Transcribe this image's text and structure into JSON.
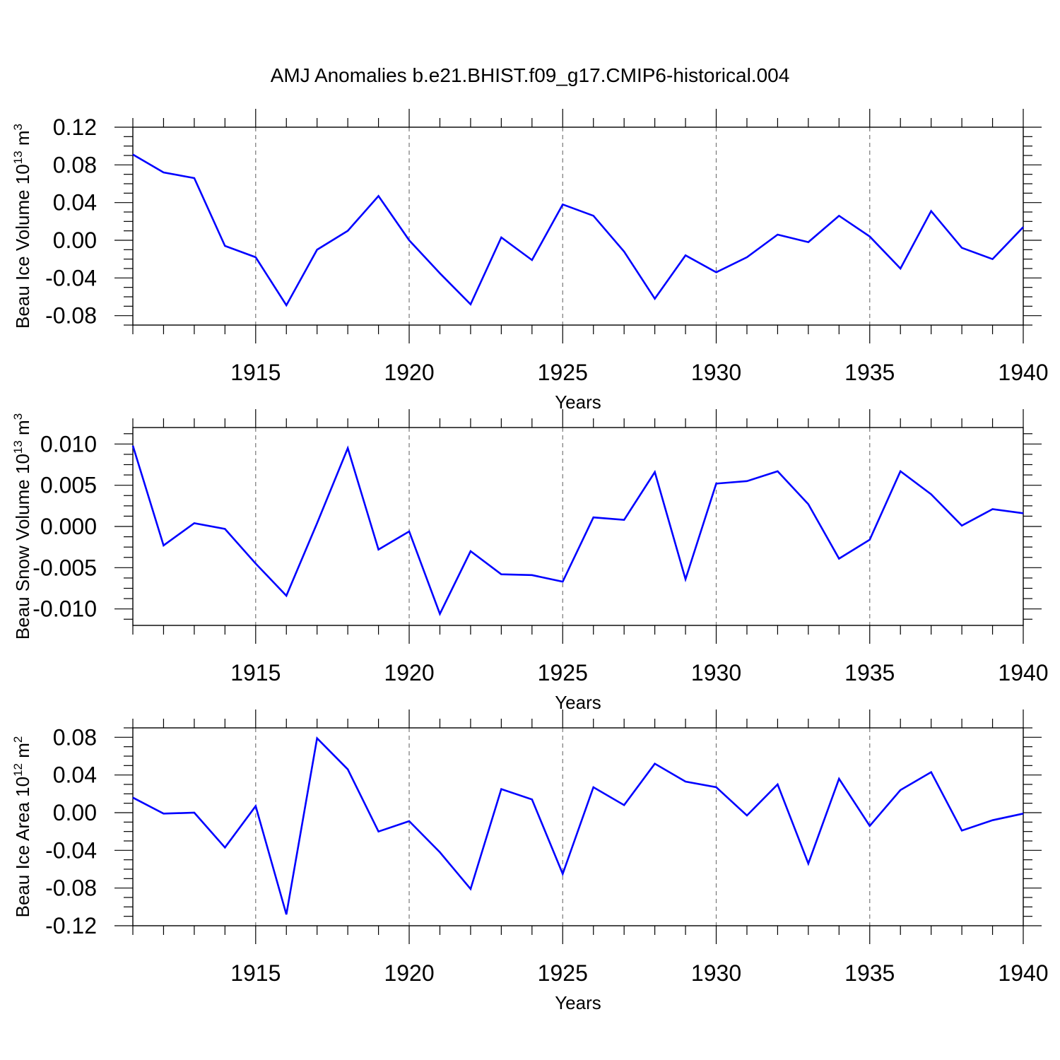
{
  "title": "AMJ Anomalies b.e21.BHIST.f09_g17.CMIP6-historical.004",
  "colors": {
    "line": "#0000ff",
    "frame": "#000000",
    "grid": "#777777"
  },
  "chart_data": [
    {
      "type": "line",
      "title": "",
      "xlabel": "Years",
      "ylabel_main": "Beau Ice Volume 10",
      "ylabel_exp": "13",
      "ylabel_unit": " m",
      "ylabel_unit_exp": "3",
      "xlim": [
        1911,
        1940
      ],
      "ylim": [
        -0.09,
        0.12
      ],
      "xticks": [
        "1915",
        "1920",
        "1925",
        "1930",
        "1935",
        "1940"
      ],
      "yticks": [
        "0.12",
        "0.08",
        "0.04",
        "0.00",
        "-0.04",
        "-0.08"
      ],
      "grid": "dashed vertical at major x ticks",
      "series": [
        {
          "x": [
            1911,
            1912,
            1913,
            1914,
            1915,
            1916,
            1917,
            1918,
            1919,
            1920,
            1921,
            1922,
            1923,
            1924,
            1925,
            1926,
            1927,
            1928,
            1929,
            1930,
            1931,
            1932,
            1933,
            1934,
            1935,
            1936,
            1937,
            1938,
            1939,
            1940
          ],
          "values": [
            0.091,
            0.072,
            0.066,
            -0.006,
            -0.018,
            -0.069,
            -0.01,
            0.01,
            0.047,
            0.0,
            -0.035,
            -0.068,
            0.003,
            -0.021,
            0.038,
            0.026,
            -0.012,
            -0.062,
            -0.016,
            -0.034,
            -0.018,
            0.006,
            -0.002,
            0.026,
            0.004,
            -0.03,
            0.031,
            -0.008,
            -0.02,
            0.014
          ]
        }
      ]
    },
    {
      "type": "line",
      "title": "",
      "xlabel": "Years",
      "ylabel_main": "Beau Snow Volume 10",
      "ylabel_exp": "13",
      "ylabel_unit": " m",
      "ylabel_unit_exp": "3",
      "xlim": [
        1911,
        1940
      ],
      "ylim": [
        -0.012,
        0.012
      ],
      "xticks": [
        "1915",
        "1920",
        "1925",
        "1930",
        "1935",
        "1940"
      ],
      "yticks": [
        "0.010",
        "0.005",
        "0.000",
        "-0.005",
        "-0.010"
      ],
      "grid": "dashed vertical at major x ticks",
      "series": [
        {
          "x": [
            1911,
            1912,
            1913,
            1914,
            1915,
            1916,
            1917,
            1918,
            1919,
            1920,
            1921,
            1922,
            1923,
            1924,
            1925,
            1926,
            1927,
            1928,
            1929,
            1930,
            1931,
            1932,
            1933,
            1934,
            1935,
            1936,
            1937,
            1938,
            1939,
            1940
          ],
          "values": [
            0.0098,
            -0.0023,
            0.0004,
            -0.0003,
            -0.0045,
            -0.0084,
            0.0004,
            0.0095,
            -0.0028,
            -0.0006,
            -0.0106,
            -0.003,
            -0.0058,
            -0.0059,
            -0.0067,
            0.0011,
            0.0008,
            0.0066,
            -0.0064,
            0.0052,
            0.0055,
            0.0067,
            0.0027,
            -0.0039,
            -0.0016,
            0.0067,
            0.0039,
            0.0001,
            0.0021,
            0.0016
          ]
        }
      ]
    },
    {
      "type": "line",
      "title": "",
      "xlabel": "Years",
      "ylabel_main": "Beau Ice Area 10",
      "ylabel_exp": "12",
      "ylabel_unit": " m",
      "ylabel_unit_exp": "2",
      "xlim": [
        1911,
        1940
      ],
      "ylim": [
        -0.12,
        0.09
      ],
      "xticks": [
        "1915",
        "1920",
        "1925",
        "1930",
        "1935",
        "1940"
      ],
      "yticks": [
        "0.08",
        "0.04",
        "0.00",
        "-0.04",
        "-0.08",
        "-0.12"
      ],
      "grid": "dashed vertical at major x ticks",
      "series": [
        {
          "x": [
            1911,
            1912,
            1913,
            1914,
            1915,
            1916,
            1917,
            1918,
            1919,
            1920,
            1921,
            1922,
            1923,
            1924,
            1925,
            1926,
            1927,
            1928,
            1929,
            1930,
            1931,
            1932,
            1933,
            1934,
            1935,
            1936,
            1937,
            1938,
            1939,
            1940
          ],
          "values": [
            0.016,
            -0.001,
            0.0,
            -0.037,
            0.007,
            -0.108,
            0.079,
            0.046,
            -0.02,
            -0.009,
            -0.042,
            -0.081,
            0.025,
            0.014,
            -0.065,
            0.027,
            0.008,
            0.052,
            0.033,
            0.027,
            -0.003,
            0.03,
            -0.054,
            0.036,
            -0.014,
            0.024,
            0.043,
            -0.019,
            -0.008,
            -0.001
          ]
        }
      ]
    }
  ]
}
